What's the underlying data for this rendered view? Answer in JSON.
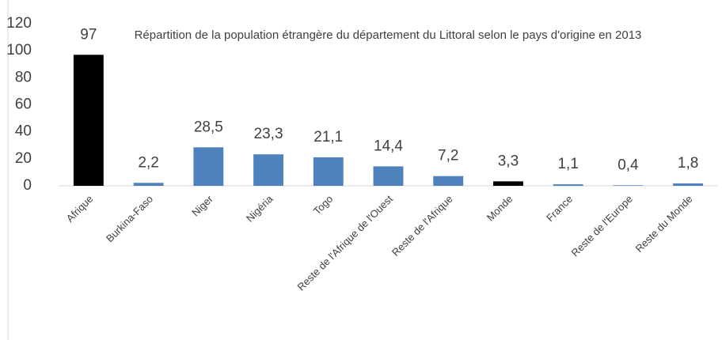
{
  "chart_data": {
    "type": "bar",
    "title": "Répartition de la population étrangère du département du Littoral selon le pays d'origine en 2013",
    "categories": [
      "Afrique",
      "Burkina-Faso",
      "Niger",
      "Nigéria",
      "Togo",
      "Reste de l'Afrique de l'Ouest",
      "Reste de l'Afrique",
      "Monde",
      "France",
      "Reste de l'Europe",
      "Reste du Monde"
    ],
    "values": [
      97,
      2.2,
      28.5,
      23.3,
      21.1,
      14.4,
      7.2,
      3.3,
      1.1,
      0.4,
      1.8
    ],
    "value_labels": [
      "97",
      "2,2",
      "28,5",
      "23,3",
      "21,1",
      "14,4",
      "7,2",
      "3,3",
      "1,1",
      "0,4",
      "1,8"
    ],
    "colors": [
      "#000000",
      "#4f81bd",
      "#4f81bd",
      "#4f81bd",
      "#4f81bd",
      "#4f81bd",
      "#4f81bd",
      "#000000",
      "#4f81bd",
      "#4f81bd",
      "#4f81bd"
    ],
    "ylim": [
      0,
      120
    ],
    "yticks": [
      0,
      20,
      40,
      60,
      80,
      100,
      120
    ],
    "grid": false
  }
}
